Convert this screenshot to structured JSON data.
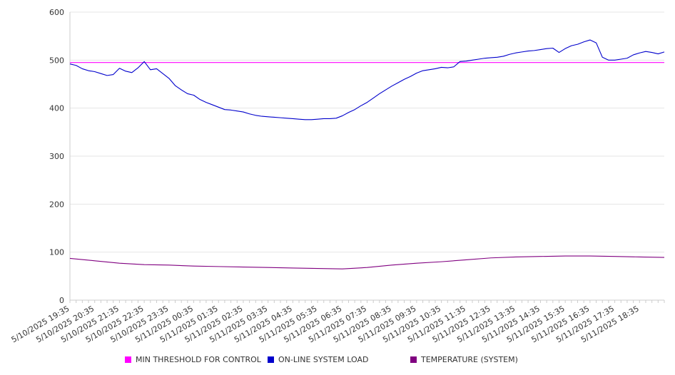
{
  "chart_data": {
    "type": "line",
    "ylim": [
      0,
      600
    ],
    "y_ticks": [
      "0",
      "100",
      "200",
      "300",
      "400",
      "500",
      "600"
    ],
    "x_tick_labels": [
      "5/10/2025 19:35",
      "5/10/2025 20:35",
      "5/10/2025 21:35",
      "5/10/2025 22:35",
      "5/10/2025 23:35",
      "5/11/2025 00:35",
      "5/11/2025 01:35",
      "5/11/2025 02:35",
      "5/11/2025 03:35",
      "5/11/2025 04:35",
      "5/11/2025 05:35",
      "5/11/2025 06:35",
      "5/11/2025 07:35",
      "5/11/2025 08:35",
      "5/11/2025 09:35",
      "5/11/2025 10:35",
      "5/11/2025 11:35",
      "5/11/2025 12:35",
      "5/11/2025 13:35",
      "5/11/2025 14:35",
      "5/11/2025 15:35",
      "5/11/2025 16:35",
      "5/11/2025 17:35",
      "5/11/2025 18:35"
    ],
    "x_range": [
      "5/10/2025 19:35",
      "5/11/2025 19:35"
    ],
    "grid": "horizontal",
    "legend_position": "bottom",
    "series": [
      {
        "name": "MIN THRESHOLD FOR CONTROL",
        "color": "#ff00ff",
        "points": [
          [
            "5/10/2025 19:35",
            495
          ],
          [
            "5/11/2025 19:35",
            495
          ]
        ]
      },
      {
        "name": "ON-LINE SYSTEM LOAD",
        "color": "#0000cc",
        "points": [
          [
            "5/10/2025 19:35",
            492
          ],
          [
            "5/10/2025 19:50",
            489
          ],
          [
            "5/10/2025 20:05",
            482
          ],
          [
            "5/10/2025 20:20",
            478
          ],
          [
            "5/10/2025 20:35",
            476
          ],
          [
            "5/10/2025 20:50",
            472
          ],
          [
            "5/10/2025 21:05",
            468
          ],
          [
            "5/10/2025 21:20",
            470
          ],
          [
            "5/10/2025 21:35",
            483
          ],
          [
            "5/10/2025 21:50",
            477
          ],
          [
            "5/10/2025 22:05",
            474
          ],
          [
            "5/10/2025 22:20",
            484
          ],
          [
            "5/10/2025 22:35",
            497
          ],
          [
            "5/10/2025 22:50",
            480
          ],
          [
            "5/10/2025 23:05",
            482
          ],
          [
            "5/10/2025 23:20",
            472
          ],
          [
            "5/10/2025 23:35",
            462
          ],
          [
            "5/10/2025 23:50",
            447
          ],
          [
            "5/11/2025 00:05",
            438
          ],
          [
            "5/11/2025 00:20",
            430
          ],
          [
            "5/11/2025 00:35",
            427
          ],
          [
            "5/11/2025 00:50",
            418
          ],
          [
            "5/11/2025 01:05",
            412
          ],
          [
            "5/11/2025 01:20",
            407
          ],
          [
            "5/11/2025 01:35",
            402
          ],
          [
            "5/11/2025 01:50",
            397
          ],
          [
            "5/11/2025 02:05",
            396
          ],
          [
            "5/11/2025 02:20",
            394
          ],
          [
            "5/11/2025 02:35",
            392
          ],
          [
            "5/11/2025 02:50",
            388
          ],
          [
            "5/11/2025 03:05",
            385
          ],
          [
            "5/11/2025 03:20",
            383
          ],
          [
            "5/11/2025 03:35",
            382
          ],
          [
            "5/11/2025 03:50",
            381
          ],
          [
            "5/11/2025 04:05",
            380
          ],
          [
            "5/11/2025 04:20",
            379
          ],
          [
            "5/11/2025 04:35",
            378
          ],
          [
            "5/11/2025 04:50",
            377
          ],
          [
            "5/11/2025 05:05",
            376
          ],
          [
            "5/11/2025 05:20",
            376
          ],
          [
            "5/11/2025 05:35",
            377
          ],
          [
            "5/11/2025 05:50",
            378
          ],
          [
            "5/11/2025 06:05",
            378
          ],
          [
            "5/11/2025 06:20",
            379
          ],
          [
            "5/11/2025 06:35",
            384
          ],
          [
            "5/11/2025 06:50",
            391
          ],
          [
            "5/11/2025 07:05",
            397
          ],
          [
            "5/11/2025 07:20",
            405
          ],
          [
            "5/11/2025 07:35",
            412
          ],
          [
            "5/11/2025 07:50",
            421
          ],
          [
            "5/11/2025 08:05",
            430
          ],
          [
            "5/11/2025 08:20",
            438
          ],
          [
            "5/11/2025 08:35",
            446
          ],
          [
            "5/11/2025 08:50",
            453
          ],
          [
            "5/11/2025 09:05",
            460
          ],
          [
            "5/11/2025 09:20",
            466
          ],
          [
            "5/11/2025 09:35",
            473
          ],
          [
            "5/11/2025 09:50",
            478
          ],
          [
            "5/11/2025 10:05",
            480
          ],
          [
            "5/11/2025 10:20",
            482
          ],
          [
            "5/11/2025 10:35",
            485
          ],
          [
            "5/11/2025 10:50",
            484
          ],
          [
            "5/11/2025 11:05",
            486
          ],
          [
            "5/11/2025 11:20",
            497
          ],
          [
            "5/11/2025 11:35",
            498
          ],
          [
            "5/11/2025 11:50",
            500
          ],
          [
            "5/11/2025 12:05",
            502
          ],
          [
            "5/11/2025 12:20",
            504
          ],
          [
            "5/11/2025 12:35",
            505
          ],
          [
            "5/11/2025 12:50",
            506
          ],
          [
            "5/11/2025 13:05",
            508
          ],
          [
            "5/11/2025 13:20",
            512
          ],
          [
            "5/11/2025 13:35",
            515
          ],
          [
            "5/11/2025 13:50",
            517
          ],
          [
            "5/11/2025 14:05",
            519
          ],
          [
            "5/11/2025 14:20",
            520
          ],
          [
            "5/11/2025 14:35",
            522
          ],
          [
            "5/11/2025 14:50",
            524
          ],
          [
            "5/11/2025 15:05",
            525
          ],
          [
            "5/11/2025 15:20",
            516
          ],
          [
            "5/11/2025 15:35",
            524
          ],
          [
            "5/11/2025 15:50",
            530
          ],
          [
            "5/11/2025 16:05",
            533
          ],
          [
            "5/11/2025 16:20",
            538
          ],
          [
            "5/11/2025 16:35",
            542
          ],
          [
            "5/11/2025 16:50",
            536
          ],
          [
            "5/11/2025 17:05",
            506
          ],
          [
            "5/11/2025 17:20",
            500
          ],
          [
            "5/11/2025 17:35",
            500
          ],
          [
            "5/11/2025 17:50",
            502
          ],
          [
            "5/11/2025 18:05",
            504
          ],
          [
            "5/11/2025 18:20",
            511
          ],
          [
            "5/11/2025 18:35",
            515
          ],
          [
            "5/11/2025 18:50",
            518
          ],
          [
            "5/11/2025 19:05",
            516
          ],
          [
            "5/11/2025 19:20",
            513
          ],
          [
            "5/11/2025 19:35",
            517
          ]
        ]
      },
      {
        "name": "TEMPERATURE (SYSTEM)",
        "color": "#800080",
        "points": [
          [
            "5/10/2025 19:35",
            87
          ],
          [
            "5/10/2025 20:35",
            82
          ],
          [
            "5/10/2025 21:35",
            77
          ],
          [
            "5/10/2025 22:35",
            74
          ],
          [
            "5/10/2025 23:35",
            73
          ],
          [
            "5/11/2025 00:35",
            71
          ],
          [
            "5/11/2025 01:35",
            70
          ],
          [
            "5/11/2025 02:35",
            69
          ],
          [
            "5/11/2025 03:35",
            68
          ],
          [
            "5/11/2025 04:35",
            67
          ],
          [
            "5/11/2025 05:35",
            66
          ],
          [
            "5/11/2025 06:35",
            65
          ],
          [
            "5/11/2025 07:35",
            68
          ],
          [
            "5/11/2025 08:35",
            73
          ],
          [
            "5/11/2025 09:35",
            77
          ],
          [
            "5/11/2025 10:35",
            80
          ],
          [
            "5/11/2025 11:35",
            84
          ],
          [
            "5/11/2025 12:35",
            88
          ],
          [
            "5/11/2025 13:35",
            90
          ],
          [
            "5/11/2025 14:35",
            91
          ],
          [
            "5/11/2025 15:35",
            92
          ],
          [
            "5/11/2025 16:35",
            92
          ],
          [
            "5/11/2025 17:35",
            91
          ],
          [
            "5/11/2025 18:35",
            90
          ],
          [
            "5/11/2025 19:35",
            89
          ]
        ]
      }
    ]
  }
}
